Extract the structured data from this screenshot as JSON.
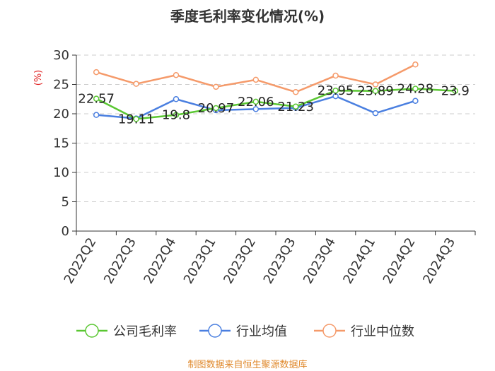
{
  "chart_data": {
    "type": "line",
    "title": "季度毛利率变化情况(%)",
    "ylabel": "(%)",
    "xlabel": "",
    "ylim": [
      0,
      30
    ],
    "yticks": [
      0,
      5,
      10,
      15,
      20,
      25,
      30
    ],
    "grid": true,
    "legend_position": "bottom",
    "categories": [
      "2022Q2",
      "2022Q3",
      "2022Q4",
      "2023Q1",
      "2023Q2",
      "2023Q3",
      "2023Q4",
      "2024Q1",
      "2024Q2",
      "2024Q3"
    ],
    "series": [
      {
        "name": "公司毛利率",
        "color": "#5ac732",
        "values": [
          22.57,
          19.11,
          19.8,
          20.97,
          22.06,
          21.23,
          23.95,
          23.89,
          24.28,
          23.9
        ],
        "labels": [
          "22.57",
          "19.11",
          "19.8",
          "20.97",
          "22.06",
          "21.23",
          "23.95",
          "23.89",
          "24.28",
          "23.9"
        ]
      },
      {
        "name": "行业均值",
        "color": "#4a7fe0",
        "values": [
          19.8,
          19.2,
          22.5,
          20.6,
          20.8,
          21.0,
          23.0,
          20.1,
          22.2,
          null
        ]
      },
      {
        "name": "行业中位数",
        "color": "#f59a6a",
        "values": [
          27.1,
          25.1,
          26.6,
          24.6,
          25.8,
          23.7,
          26.5,
          25.0,
          28.4,
          null
        ]
      }
    ],
    "source": "制图数据来自恒生聚源数据库"
  }
}
